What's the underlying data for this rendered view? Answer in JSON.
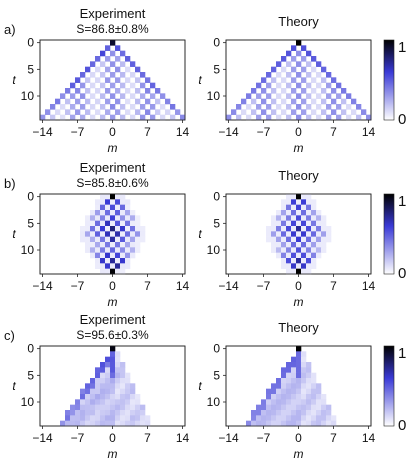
{
  "rows": [
    {
      "label": "a)",
      "kind": "ballistic",
      "experiment_title": "Experiment",
      "experiment_subtitle": "S=86.8±0.8%",
      "theory_title": "Theory"
    },
    {
      "label": "b)",
      "kind": "localized",
      "experiment_title": "Experiment",
      "experiment_subtitle": "S=85.8±0.6%",
      "theory_title": "Theory"
    },
    {
      "label": "c)",
      "kind": "edge",
      "experiment_title": "Experiment",
      "experiment_subtitle": "S=95.6±0.3%",
      "theory_title": "Theory"
    }
  ],
  "axes": {
    "xlabel": "m",
    "ylabel": "t",
    "xticks": [
      "−14",
      "−7",
      "0",
      "7",
      "14"
    ],
    "yticks": [
      "0",
      "5",
      "10"
    ]
  },
  "colorbar": {
    "max_label": "1",
    "min_label": "0",
    "low_color": "#ffffff",
    "mid_color": "#3a3ad6",
    "high_color": "#000000"
  },
  "chart_data": [
    {
      "type": "heatmap",
      "panel": "a-experiment",
      "title": "Experiment",
      "subtitle": "S=86.8±0.8%",
      "xlabel": "m",
      "ylabel": "t",
      "xlim": [
        -14,
        14
      ],
      "ylim": [
        0,
        14
      ],
      "pattern": "ballistic light cone, max 1 at m=0, t=0",
      "zlim": [
        0,
        1
      ]
    },
    {
      "type": "heatmap",
      "panel": "a-theory",
      "title": "Theory",
      "xlabel": "m",
      "ylabel": "t",
      "xlim": [
        -14,
        14
      ],
      "ylim": [
        0,
        14
      ],
      "pattern": "ballistic light cone, max 1 at m=0, t=0",
      "zlim": [
        0,
        1
      ]
    },
    {
      "type": "heatmap",
      "panel": "b-experiment",
      "title": "Experiment",
      "subtitle": "S=85.8±0.6%",
      "xlabel": "m",
      "ylabel": "t",
      "xlim": [
        -14,
        14
      ],
      "ylim": [
        0,
        14
      ],
      "pattern": "bounded diamond oscillation, |m|<=5",
      "zlim": [
        0,
        1
      ]
    },
    {
      "type": "heatmap",
      "panel": "b-theory",
      "title": "Theory",
      "xlabel": "m",
      "ylabel": "t",
      "xlim": [
        -14,
        14
      ],
      "ylim": [
        0,
        14
      ],
      "pattern": "bounded diamond oscillation, |m|<=5",
      "zlim": [
        0,
        1
      ]
    },
    {
      "type": "heatmap",
      "panel": "c-experiment",
      "title": "Experiment",
      "subtitle": "S=95.6±0.3%",
      "xlabel": "m",
      "ylabel": "t",
      "xlim": [
        -14,
        14
      ],
      "ylim": [
        0,
        14
      ],
      "pattern": "asymmetric spread, strong left edge",
      "zlim": [
        0,
        1
      ]
    },
    {
      "type": "heatmap",
      "panel": "c-theory",
      "title": "Theory",
      "xlabel": "m",
      "ylabel": "t",
      "xlim": [
        -14,
        14
      ],
      "ylim": [
        0,
        14
      ],
      "pattern": "asymmetric spread, strong left edge",
      "zlim": [
        0,
        1
      ]
    }
  ]
}
